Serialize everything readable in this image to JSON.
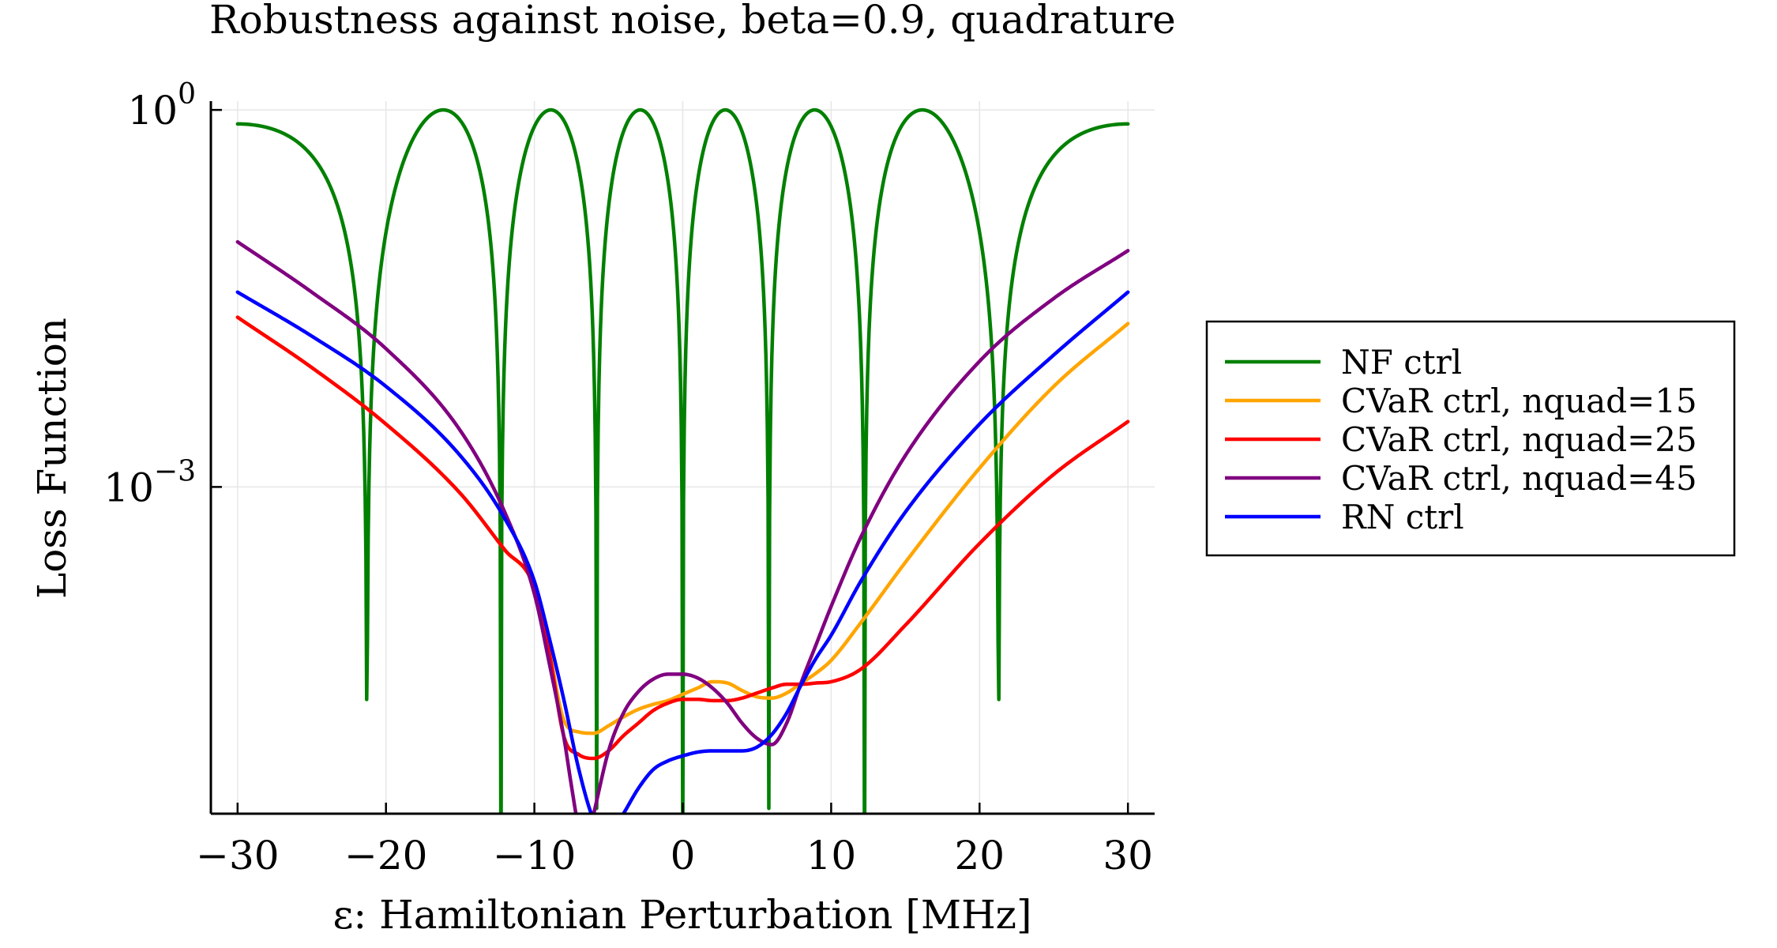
{
  "chart_data": {
    "type": "line",
    "title": "Robustness against noise, beta=0.9, quadrature",
    "xlabel": "ε: Hamiltonian Perturbation [MHz]",
    "ylabel": "Loss Function",
    "xlim": [
      -31.8,
      31.8
    ],
    "ylim_log10": [
      -5.6,
      0.07
    ],
    "yscale": "log",
    "grid": true,
    "legend_position": "right",
    "x_ticks": [
      {
        "value": -30,
        "label": "−30"
      },
      {
        "value": -20,
        "label": "−20"
      },
      {
        "value": -10,
        "label": "−10"
      },
      {
        "value": 0,
        "label": "0"
      },
      {
        "value": 10,
        "label": "10"
      },
      {
        "value": 20,
        "label": "20"
      },
      {
        "value": 30,
        "label": "30"
      }
    ],
    "y_ticks": [
      {
        "log10": 0,
        "base": "10",
        "exponent": "0"
      },
      {
        "log10": -3,
        "base": "10",
        "exponent": "−3"
      }
    ],
    "series": [
      {
        "name": "NF ctrl",
        "color": "#008000",
        "formula": "nf"
      },
      {
        "name": "CVaR ctrl, nquad=15",
        "color": "#FFA500",
        "x": [
          -30,
          -25,
          -20,
          -15,
          -12,
          -10,
          -9,
          -8,
          -7,
          -6,
          -5,
          -4,
          -3,
          -2,
          -1,
          0,
          1,
          2,
          3,
          4,
          5,
          6,
          7,
          8,
          9,
          10,
          12,
          15,
          20,
          25,
          30
        ],
        "y_log10": [
          -1.65,
          -2.05,
          -2.5,
          -3.05,
          -3.5,
          -3.8,
          -4.3,
          -4.86,
          -4.95,
          -4.96,
          -4.9,
          -4.83,
          -4.77,
          -4.73,
          -4.7,
          -4.65,
          -4.6,
          -4.55,
          -4.56,
          -4.62,
          -4.67,
          -4.68,
          -4.64,
          -4.56,
          -4.48,
          -4.38,
          -4.08,
          -3.6,
          -2.85,
          -2.2,
          -1.7
        ]
      },
      {
        "name": "CVaR ctrl, nquad=25",
        "color": "#FF0000",
        "x": [
          -30,
          -25,
          -20,
          -15,
          -12,
          -10,
          -9,
          -8,
          -7,
          -6,
          -5,
          -4,
          -3,
          -2,
          -1,
          0,
          1,
          2,
          3,
          4,
          5,
          6,
          7,
          8,
          9,
          10,
          12,
          15,
          20,
          25,
          30
        ],
        "y_log10": [
          -1.65,
          -2.05,
          -2.5,
          -3.05,
          -3.5,
          -3.8,
          -4.32,
          -4.99,
          -5.13,
          -5.16,
          -5.1,
          -4.98,
          -4.88,
          -4.78,
          -4.72,
          -4.69,
          -4.69,
          -4.7,
          -4.7,
          -4.68,
          -4.64,
          -4.6,
          -4.57,
          -4.57,
          -4.56,
          -4.55,
          -4.45,
          -4.1,
          -3.45,
          -2.9,
          -2.48
        ]
      },
      {
        "name": "CVaR ctrl, nquad=45",
        "color": "#800080",
        "x": [
          -30,
          -25,
          -20,
          -15,
          -12,
          -10,
          -9,
          -8,
          -7.5,
          -7,
          -6.5,
          -6,
          -5,
          -4,
          -3,
          -2,
          -1,
          0,
          1,
          2,
          3,
          4,
          5,
          6,
          7,
          8,
          9,
          10,
          12,
          15,
          20,
          25,
          30
        ],
        "y_log10": [
          -1.05,
          -1.45,
          -1.9,
          -2.55,
          -3.2,
          -3.85,
          -4.4,
          -5.0,
          -5.38,
          -5.72,
          -5.85,
          -5.6,
          -5.1,
          -4.8,
          -4.63,
          -4.53,
          -4.49,
          -4.49,
          -4.52,
          -4.6,
          -4.72,
          -4.88,
          -5.0,
          -5.05,
          -4.88,
          -4.55,
          -4.25,
          -3.95,
          -3.4,
          -2.75,
          -2.0,
          -1.5,
          -1.12
        ]
      },
      {
        "name": "RN ctrl",
        "color": "#0000FF",
        "x": [
          -30,
          -25,
          -20,
          -15,
          -12,
          -10,
          -9,
          -8,
          -7,
          -6,
          -5,
          -4,
          -3,
          -2,
          -1,
          0,
          1,
          2,
          3,
          4,
          5,
          6,
          7,
          8,
          9,
          10,
          12,
          15,
          20,
          25,
          30
        ],
        "y_log10": [
          -1.45,
          -1.8,
          -2.2,
          -2.75,
          -3.25,
          -3.75,
          -4.2,
          -4.7,
          -5.25,
          -5.65,
          -5.78,
          -5.6,
          -5.4,
          -5.25,
          -5.18,
          -5.14,
          -5.11,
          -5.1,
          -5.1,
          -5.1,
          -5.07,
          -4.97,
          -4.8,
          -4.57,
          -4.36,
          -4.18,
          -3.75,
          -3.2,
          -2.5,
          -1.95,
          -1.45
        ]
      }
    ]
  }
}
